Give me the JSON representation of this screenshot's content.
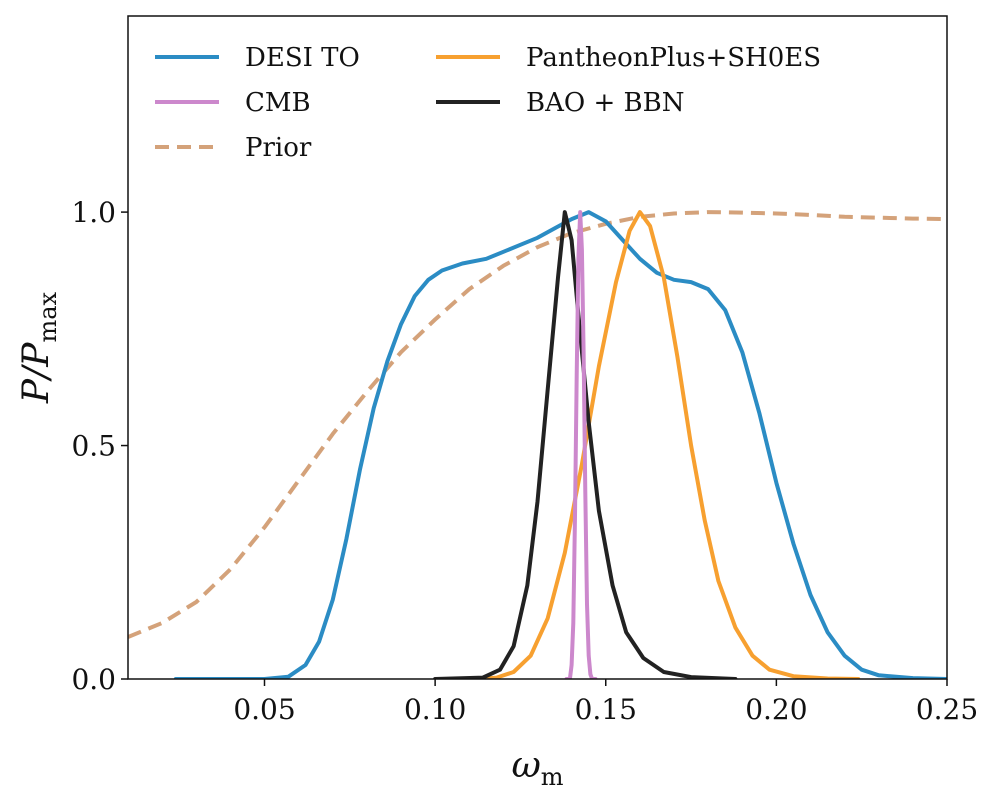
{
  "chart_data": {
    "type": "line",
    "title": "",
    "xlabel": "ω_m",
    "xlabel_main": "ω",
    "xlabel_sub": "m",
    "ylabel": "P/P_max",
    "ylabel_main": "P/P",
    "ylabel_sub": "max",
    "xlim": [
      0.01,
      0.25
    ],
    "ylim": [
      0.0,
      1.42
    ],
    "xticks": [
      0.05,
      0.1,
      0.15,
      0.2,
      0.25
    ],
    "xtick_labels": [
      "0.05",
      "0.10",
      "0.15",
      "0.20",
      "0.25"
    ],
    "yticks": [
      0.0,
      0.5,
      1.0
    ],
    "ytick_labels": [
      "0.0",
      "0.5",
      "1.0"
    ],
    "grid": false,
    "legend_placement": "top-left",
    "series": [
      {
        "name": "DESI TO",
        "color": "#2b8cc4",
        "dash": "solid",
        "points": [
          [
            0.024,
            0.0
          ],
          [
            0.05,
            0.0
          ],
          [
            0.057,
            0.005
          ],
          [
            0.062,
            0.03
          ],
          [
            0.066,
            0.08
          ],
          [
            0.07,
            0.17
          ],
          [
            0.074,
            0.3
          ],
          [
            0.078,
            0.45
          ],
          [
            0.082,
            0.58
          ],
          [
            0.086,
            0.68
          ],
          [
            0.09,
            0.76
          ],
          [
            0.094,
            0.82
          ],
          [
            0.098,
            0.855
          ],
          [
            0.102,
            0.875
          ],
          [
            0.108,
            0.89
          ],
          [
            0.115,
            0.9
          ],
          [
            0.12,
            0.915
          ],
          [
            0.125,
            0.93
          ],
          [
            0.13,
            0.945
          ],
          [
            0.135,
            0.965
          ],
          [
            0.14,
            0.985
          ],
          [
            0.145,
            1.0
          ],
          [
            0.15,
            0.98
          ],
          [
            0.155,
            0.94
          ],
          [
            0.16,
            0.9
          ],
          [
            0.165,
            0.87
          ],
          [
            0.17,
            0.855
          ],
          [
            0.175,
            0.85
          ],
          [
            0.18,
            0.835
          ],
          [
            0.185,
            0.79
          ],
          [
            0.19,
            0.7
          ],
          [
            0.195,
            0.57
          ],
          [
            0.2,
            0.42
          ],
          [
            0.205,
            0.29
          ],
          [
            0.21,
            0.18
          ],
          [
            0.215,
            0.1
          ],
          [
            0.22,
            0.05
          ],
          [
            0.225,
            0.02
          ],
          [
            0.23,
            0.008
          ],
          [
            0.24,
            0.002
          ],
          [
            0.25,
            0.0
          ]
        ]
      },
      {
        "name": "CMB",
        "color": "#cc88cc",
        "dash": "solid",
        "points": [
          [
            0.1385,
            0.0
          ],
          [
            0.1395,
            0.0
          ],
          [
            0.14,
            0.03
          ],
          [
            0.1405,
            0.12
          ],
          [
            0.141,
            0.35
          ],
          [
            0.1415,
            0.65
          ],
          [
            0.142,
            0.9
          ],
          [
            0.1425,
            1.0
          ],
          [
            0.143,
            0.92
          ],
          [
            0.1435,
            0.7
          ],
          [
            0.144,
            0.4
          ],
          [
            0.1445,
            0.16
          ],
          [
            0.145,
            0.05
          ],
          [
            0.1455,
            0.01
          ],
          [
            0.146,
            0.0
          ],
          [
            0.147,
            0.0
          ]
        ]
      },
      {
        "name": "Prior",
        "color": "#d4a27a",
        "dash": "dashed",
        "points": [
          [
            0.01,
            0.09
          ],
          [
            0.02,
            0.12
          ],
          [
            0.03,
            0.165
          ],
          [
            0.04,
            0.235
          ],
          [
            0.05,
            0.325
          ],
          [
            0.06,
            0.425
          ],
          [
            0.07,
            0.525
          ],
          [
            0.08,
            0.615
          ],
          [
            0.09,
            0.7
          ],
          [
            0.1,
            0.77
          ],
          [
            0.11,
            0.835
          ],
          [
            0.12,
            0.885
          ],
          [
            0.13,
            0.925
          ],
          [
            0.14,
            0.955
          ],
          [
            0.15,
            0.975
          ],
          [
            0.16,
            0.99
          ],
          [
            0.17,
            0.997
          ],
          [
            0.18,
            1.0
          ],
          [
            0.19,
            0.999
          ],
          [
            0.2,
            0.997
          ],
          [
            0.21,
            0.994
          ],
          [
            0.22,
            0.99
          ],
          [
            0.23,
            0.988
          ],
          [
            0.24,
            0.986
          ],
          [
            0.25,
            0.985
          ]
        ]
      },
      {
        "name": "PantheonPlus+SH0ES",
        "color": "#f7a030",
        "dash": "solid",
        "points": [
          [
            0.113,
            0.0
          ],
          [
            0.118,
            0.003
          ],
          [
            0.123,
            0.015
          ],
          [
            0.128,
            0.05
          ],
          [
            0.133,
            0.13
          ],
          [
            0.138,
            0.27
          ],
          [
            0.143,
            0.46
          ],
          [
            0.148,
            0.67
          ],
          [
            0.153,
            0.85
          ],
          [
            0.157,
            0.96
          ],
          [
            0.16,
            1.0
          ],
          [
            0.163,
            0.97
          ],
          [
            0.167,
            0.86
          ],
          [
            0.171,
            0.69
          ],
          [
            0.175,
            0.5
          ],
          [
            0.179,
            0.34
          ],
          [
            0.183,
            0.21
          ],
          [
            0.188,
            0.11
          ],
          [
            0.193,
            0.05
          ],
          [
            0.198,
            0.02
          ],
          [
            0.205,
            0.006
          ],
          [
            0.215,
            0.001
          ],
          [
            0.224,
            0.0
          ]
        ]
      },
      {
        "name": "BAO + BBN",
        "color": "#222222",
        "dash": "solid",
        "points": [
          [
            0.1,
            0.0
          ],
          [
            0.114,
            0.003
          ],
          [
            0.119,
            0.02
          ],
          [
            0.123,
            0.07
          ],
          [
            0.127,
            0.2
          ],
          [
            0.13,
            0.38
          ],
          [
            0.133,
            0.62
          ],
          [
            0.136,
            0.86
          ],
          [
            0.138,
            1.0
          ],
          [
            0.14,
            0.94
          ],
          [
            0.142,
            0.78
          ],
          [
            0.145,
            0.55
          ],
          [
            0.148,
            0.36
          ],
          [
            0.152,
            0.2
          ],
          [
            0.156,
            0.1
          ],
          [
            0.161,
            0.045
          ],
          [
            0.167,
            0.015
          ],
          [
            0.175,
            0.004
          ],
          [
            0.188,
            0.0
          ]
        ]
      }
    ],
    "legend_order": [
      "DESI TO",
      "PantheonPlus+SH0ES",
      "CMB",
      "BAO + BBN",
      "Prior"
    ]
  }
}
